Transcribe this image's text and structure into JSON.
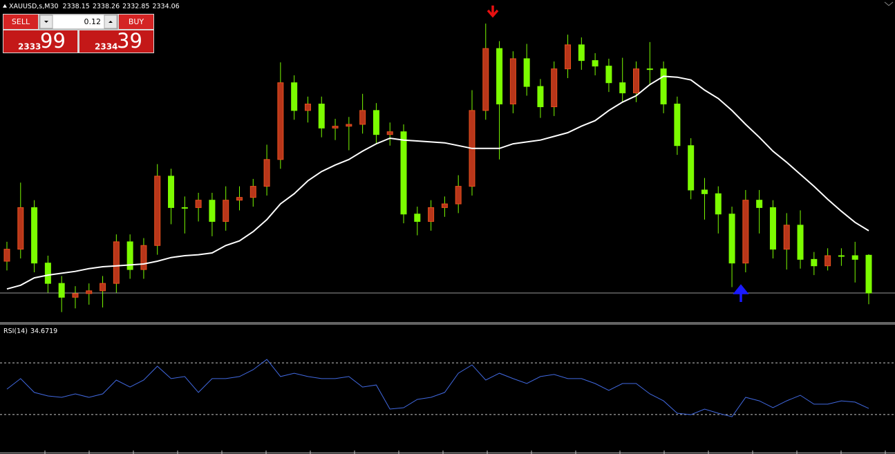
{
  "symbol": "XAUUSD,s,M30",
  "trade_panel": {
    "sell": "SELL",
    "buy": "BUY",
    "lot": "0.12",
    "bid": {
      "prefix": "2333",
      "big": "99"
    },
    "ask": {
      "prefix": "2334",
      "big": "39"
    }
  },
  "chart": {
    "type": "candlestick",
    "ylim": [
      2331,
      2365
    ],
    "bull_color": "#b8361a",
    "bear_color": "#7cfc00",
    "wick_color": "#7cfc00",
    "ohlc": [
      [
        2337.5,
        2339.6,
        2336.5,
        2338.8
      ],
      [
        2338.8,
        2346.0,
        2337.8,
        2343.3
      ],
      [
        2343.3,
        2344.1,
        2336.3,
        2337.3
      ],
      [
        2337.3,
        2338.1,
        2334.1,
        2335.1
      ],
      [
        2335.1,
        2335.9,
        2332.0,
        2333.6
      ],
      [
        2333.6,
        2334.8,
        2332.4,
        2334.0
      ],
      [
        2334.0,
        2335.1,
        2332.8,
        2334.3
      ],
      [
        2334.3,
        2335.9,
        2332.5,
        2335.1
      ],
      [
        2335.1,
        2340.4,
        2334.1,
        2339.6
      ],
      [
        2339.6,
        2340.4,
        2335.6,
        2336.6
      ],
      [
        2336.6,
        2340.0,
        2335.6,
        2339.2
      ],
      [
        2339.2,
        2348.0,
        2338.2,
        2346.7
      ],
      [
        2346.7,
        2347.5,
        2341.5,
        2343.3
      ],
      [
        2343.3,
        2344.5,
        2340.5,
        2343.3
      ],
      [
        2343.3,
        2344.9,
        2341.8,
        2344.1
      ],
      [
        2344.1,
        2344.9,
        2340.2,
        2341.8
      ],
      [
        2341.8,
        2345.6,
        2340.8,
        2344.1
      ],
      [
        2344.1,
        2345.6,
        2343.0,
        2344.4
      ],
      [
        2344.4,
        2346.4,
        2343.4,
        2345.6
      ],
      [
        2345.6,
        2350.1,
        2344.6,
        2348.5
      ],
      [
        2348.5,
        2359.0,
        2347.5,
        2356.8
      ],
      [
        2356.8,
        2357.6,
        2352.8,
        2353.8
      ],
      [
        2353.8,
        2355.3,
        2352.5,
        2354.5
      ],
      [
        2354.5,
        2355.3,
        2350.9,
        2351.9
      ],
      [
        2351.9,
        2352.9,
        2350.6,
        2352.1
      ],
      [
        2352.1,
        2353.1,
        2349.5,
        2352.3
      ],
      [
        2352.3,
        2355.6,
        2351.3,
        2353.8
      ],
      [
        2353.8,
        2354.6,
        2350.2,
        2351.2
      ],
      [
        2351.2,
        2352.5,
        2350.0,
        2351.5
      ],
      [
        2351.5,
        2352.3,
        2341.6,
        2342.6
      ],
      [
        2342.6,
        2343.4,
        2340.3,
        2341.8
      ],
      [
        2341.8,
        2344.1,
        2340.8,
        2343.3
      ],
      [
        2343.3,
        2344.5,
        2342.3,
        2343.7
      ],
      [
        2343.7,
        2346.8,
        2342.7,
        2345.6
      ],
      [
        2345.6,
        2356.0,
        2344.6,
        2353.8
      ],
      [
        2353.8,
        2363.2,
        2352.8,
        2360.5
      ],
      [
        2360.5,
        2361.3,
        2348.5,
        2354.5
      ],
      [
        2354.5,
        2360.2,
        2353.5,
        2359.4
      ],
      [
        2359.4,
        2361.0,
        2355.4,
        2356.4
      ],
      [
        2356.4,
        2357.2,
        2353.0,
        2354.2
      ],
      [
        2354.2,
        2359.1,
        2353.2,
        2358.3
      ],
      [
        2358.3,
        2362.0,
        2357.3,
        2360.9
      ],
      [
        2360.9,
        2361.7,
        2358.2,
        2359.2
      ],
      [
        2359.2,
        2360.0,
        2357.6,
        2358.6
      ],
      [
        2358.6,
        2359.4,
        2355.8,
        2356.8
      ],
      [
        2356.8,
        2359.5,
        2354.7,
        2355.7
      ],
      [
        2355.7,
        2359.1,
        2354.7,
        2358.3
      ],
      [
        2358.3,
        2361.2,
        2356.5,
        2358.3
      ],
      [
        2358.3,
        2359.1,
        2353.5,
        2354.5
      ],
      [
        2354.5,
        2355.3,
        2349.0,
        2350.0
      ],
      [
        2350.0,
        2350.8,
        2344.2,
        2345.2
      ],
      [
        2345.2,
        2346.5,
        2342.0,
        2344.8
      ],
      [
        2344.8,
        2345.6,
        2340.5,
        2342.6
      ],
      [
        2342.6,
        2343.4,
        2334.7,
        2337.3
      ],
      [
        2337.3,
        2345.2,
        2336.3,
        2344.1
      ],
      [
        2344.1,
        2345.2,
        2340.5,
        2343.3
      ],
      [
        2343.3,
        2344.1,
        2337.8,
        2338.8
      ],
      [
        2338.8,
        2342.7,
        2336.6,
        2341.4
      ],
      [
        2341.4,
        2343.0,
        2336.7,
        2337.7
      ],
      [
        2337.7,
        2338.5,
        2336.0,
        2337.0
      ],
      [
        2337.0,
        2338.9,
        2336.5,
        2338.1
      ],
      [
        2338.1,
        2338.9,
        2337.0,
        2338.1
      ],
      [
        2338.1,
        2339.6,
        2335.2,
        2337.7
      ],
      [
        2338.15,
        2338.26,
        2332.85,
        2334.06
      ]
    ],
    "ma": {
      "color": "#ffffff",
      "values": [
        2334.5,
        2334.9,
        2335.7,
        2336.0,
        2336.2,
        2336.4,
        2336.7,
        2336.9,
        2337.0,
        2337.1,
        2337.2,
        2337.5,
        2337.9,
        2338.1,
        2338.2,
        2338.4,
        2339.2,
        2339.7,
        2340.7,
        2342.0,
        2343.7,
        2344.8,
        2346.2,
        2347.2,
        2347.9,
        2348.5,
        2349.4,
        2350.2,
        2350.8,
        2350.6,
        2350.5,
        2350.4,
        2350.3,
        2350.0,
        2349.7,
        2349.7,
        2349.7,
        2350.2,
        2350.4,
        2350.6,
        2351.0,
        2351.4,
        2352.1,
        2352.7,
        2353.8,
        2354.7,
        2355.4,
        2356.6,
        2357.5,
        2357.4,
        2357.1,
        2356.0,
        2355.1,
        2353.8,
        2352.3,
        2350.9,
        2349.4,
        2348.2,
        2346.9,
        2345.6,
        2344.2,
        2342.9,
        2341.7,
        2340.8
      ]
    }
  },
  "rsi": {
    "label": "RSI(14)",
    "value": 34.6719,
    "ylim": [
      0,
      100
    ],
    "levels": [
      30,
      70
    ],
    "color": "#4169e1",
    "values": [
      49.7,
      57.8,
      47.1,
      44.4,
      43.3,
      46.0,
      43.3,
      46.0,
      56.7,
      51.3,
      56.7,
      67.4,
      57.8,
      59.4,
      47.1,
      57.8,
      57.8,
      59.4,
      64.7,
      72.7,
      59.4,
      62.0,
      59.4,
      57.8,
      57.8,
      59.4,
      51.3,
      52.9,
      34.2,
      35.3,
      41.7,
      43.3,
      47.1,
      62.0,
      68.4,
      56.7,
      62.0,
      57.8,
      54.0,
      59.4,
      61.0,
      57.8,
      57.8,
      54.0,
      48.7,
      54.0,
      54.0,
      46.0,
      40.6,
      31.0,
      29.9,
      34.2,
      31.0,
      28.3,
      43.3,
      40.6,
      35.3,
      40.6,
      44.9,
      38.0,
      38.0,
      40.6,
      39.6,
      34.7
    ]
  }
}
